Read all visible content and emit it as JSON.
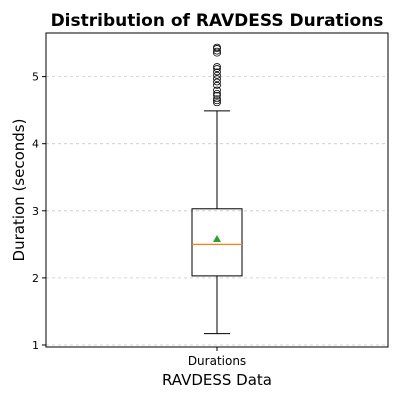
{
  "chart_data": {
    "type": "box",
    "title": "Distribution of RAVDESS Durations",
    "xlabel": "RAVDESS Data",
    "ylabel": "Duration (seconds)",
    "categories": [
      "Durations"
    ],
    "ylim": [
      0.97,
      5.65
    ],
    "yticks": [
      1,
      2,
      3,
      4,
      5
    ],
    "grid": "y-dashed",
    "box": {
      "whisker_low": 1.17,
      "q1": 2.03,
      "median": 2.5,
      "q3": 3.03,
      "whisker_high": 4.49,
      "mean": 2.58
    },
    "fliers": [
      4.61,
      4.64,
      4.67,
      4.72,
      4.75,
      4.8,
      4.87,
      4.92,
      4.97,
      5.02,
      5.07,
      5.12,
      5.15,
      5.35,
      5.38,
      5.42,
      5.44
    ],
    "colors": {
      "median": "#ff7f0e",
      "mean": "#2ca02c",
      "grid": "#c8c8c8"
    }
  }
}
